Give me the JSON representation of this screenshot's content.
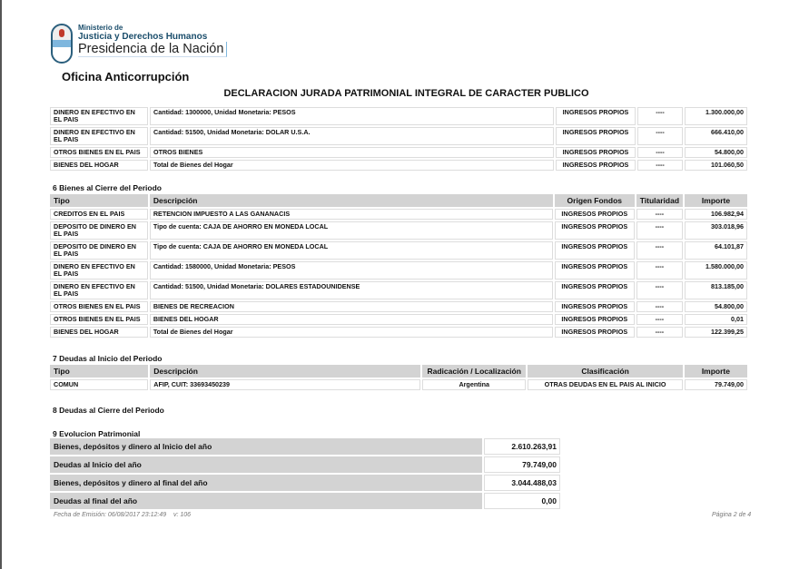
{
  "header": {
    "logo_line1": "Ministerio de",
    "logo_line2": "Justicia y Derechos Humanos",
    "logo_line3": "Presidencia de la Nación",
    "office": "Oficina Anticorrupción",
    "title": "DECLARACION JURADA PATRIMONIAL INTEGRAL DE CARACTER PUBLICO"
  },
  "prev_table": {
    "rows": [
      [
        "DINERO EN EFECTIVO EN EL PAIS",
        "Cantidad: 1300000, Unidad Monetaria: PESOS",
        "INGRESOS PROPIOS",
        "----",
        "1.300.000,00"
      ],
      [
        "DINERO EN EFECTIVO EN EL PAIS",
        "Cantidad: 51500, Unidad Monetaria: DOLAR U.S.A.",
        "INGRESOS PROPIOS",
        "----",
        "666.410,00"
      ],
      [
        "OTROS BIENES EN EL PAIS",
        "OTROS BIENES",
        "INGRESOS PROPIOS",
        "----",
        "54.800,00"
      ],
      [
        "BIENES DEL HOGAR",
        "Total de Bienes del Hogar",
        "INGRESOS PROPIOS",
        "----",
        "101.060,50"
      ]
    ]
  },
  "section6": {
    "title": "6 Bienes al Cierre del Periodo",
    "headers": [
      "Tipo",
      "Descripción",
      "Origen Fondos",
      "Titularidad",
      "Importe"
    ],
    "rows": [
      [
        "CREDITOS EN EL PAIS",
        "RETENCION IMPUESTO A LAS GANANACIS",
        "INGRESOS PROPIOS",
        "----",
        "106.982,94"
      ],
      [
        "DEPOSITO DE DINERO EN EL PAIS",
        "Tipo de cuenta: CAJA DE AHORRO EN MONEDA LOCAL",
        "INGRESOS PROPIOS",
        "----",
        "303.018,96"
      ],
      [
        "DEPOSITO DE DINERO EN EL PAIS",
        "Tipo de cuenta: CAJA DE AHORRO EN MONEDA LOCAL",
        "INGRESOS PROPIOS",
        "----",
        "64.101,87"
      ],
      [
        "DINERO EN EFECTIVO EN EL PAIS",
        "Cantidad: 1580000, Unidad Monetaria: PESOS",
        "INGRESOS PROPIOS",
        "----",
        "1.580.000,00"
      ],
      [
        "DINERO EN EFECTIVO EN EL PAIS",
        "Cantidad: 51500, Unidad Monetaria: DOLARES ESTADOUNIDENSE",
        "INGRESOS PROPIOS",
        "----",
        "813.185,00"
      ],
      [
        "OTROS BIENES EN EL PAIS",
        "BIENES DE RECREACION",
        "INGRESOS PROPIOS",
        "----",
        "54.800,00"
      ],
      [
        "OTROS BIENES EN EL PAIS",
        "BIENES DEL HOGAR",
        "INGRESOS PROPIOS",
        "----",
        "0,01"
      ],
      [
        "BIENES DEL HOGAR",
        "Total de Bienes del Hogar",
        "INGRESOS PROPIOS",
        "----",
        "122.399,25"
      ]
    ]
  },
  "section7": {
    "title": "7 Deudas al Inicio del Periodo",
    "headers": [
      "Tipo",
      "Descripción",
      "Radicación / Localización",
      "Clasificación",
      "Importe"
    ],
    "rows": [
      [
        "COMUN",
        "AFIP, CUIT: 33693450239",
        "Argentina",
        "OTRAS DEUDAS EN EL PAIS AL INICIO",
        "79.749,00"
      ]
    ]
  },
  "section8": {
    "title": "8 Deudas al Cierre del Periodo"
  },
  "section9": {
    "title": "9 Evolucion Patrimonial",
    "rows": [
      [
        "Bienes, depósitos y dinero al Inicio del año",
        "2.610.263,91"
      ],
      [
        "Deudas al Inicio del año",
        "79.749,00"
      ],
      [
        "Bienes, depósitos y dinero al final del año",
        "3.044.488,03"
      ],
      [
        "Deudas al final del año",
        "0,00"
      ]
    ]
  },
  "footer": {
    "emission": "Fecha de Emisión: 06/08/2017 23:12:49",
    "version": "v: 106",
    "page": "Página 2 de 4"
  }
}
